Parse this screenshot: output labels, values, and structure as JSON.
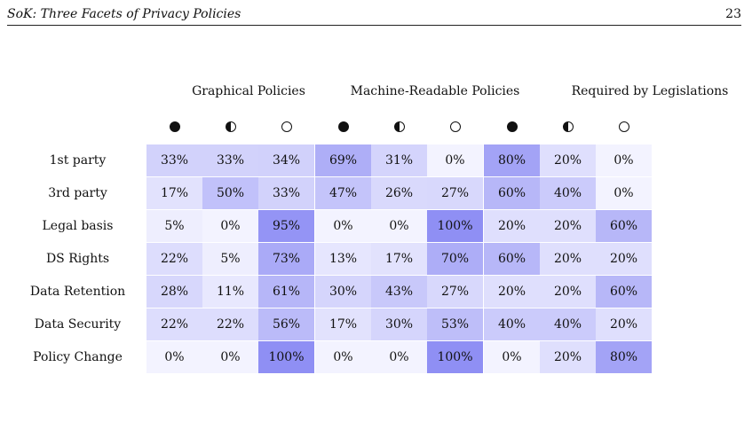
{
  "header": {
    "title": "SoK: Three Facets of Privacy Policies",
    "page_number": "23"
  },
  "table": {
    "groups": [
      "Graphical Policies",
      "Machine-Readable Policies",
      "Required by Legislations"
    ],
    "symbols": [
      "full-circle",
      "half-circle",
      "empty-circle"
    ],
    "rows": [
      {
        "label": "1st party",
        "values": [
          "33%",
          "33%",
          "34%",
          "69%",
          "31%",
          "0%",
          "80%",
          "20%",
          "0%"
        ]
      },
      {
        "label": "3rd party",
        "values": [
          "17%",
          "50%",
          "33%",
          "47%",
          "26%",
          "27%",
          "60%",
          "40%",
          "0%"
        ]
      },
      {
        "label": "Legal basis",
        "values": [
          "5%",
          "0%",
          "95%",
          "0%",
          "0%",
          "100%",
          "20%",
          "20%",
          "60%"
        ]
      },
      {
        "label": "DS Rights",
        "values": [
          "22%",
          "5%",
          "73%",
          "13%",
          "17%",
          "70%",
          "60%",
          "20%",
          "20%"
        ]
      },
      {
        "label": "Data Retention",
        "values": [
          "28%",
          "11%",
          "61%",
          "30%",
          "43%",
          "27%",
          "20%",
          "20%",
          "60%"
        ]
      },
      {
        "label": "Data Security",
        "values": [
          "22%",
          "22%",
          "56%",
          "17%",
          "30%",
          "53%",
          "40%",
          "40%",
          "20%"
        ]
      },
      {
        "label": "Policy Change",
        "values": [
          "0%",
          "0%",
          "100%",
          "0%",
          "0%",
          "100%",
          "0%",
          "20%",
          "80%"
        ]
      }
    ],
    "colors": {
      "low": "#f3f3ff",
      "high": "#8f8ff4"
    }
  }
}
